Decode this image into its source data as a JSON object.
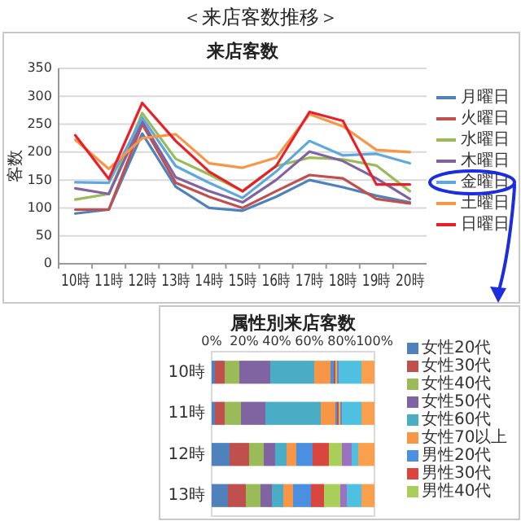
{
  "chart_data": [
    {
      "type": "line",
      "title": "来店客数",
      "ylabel": "客数",
      "annotations": [
        "＜来店客数推移＞"
      ],
      "categories": [
        "10時",
        "11時",
        "12時",
        "13時",
        "14時",
        "15時",
        "16時",
        "17時",
        "18時",
        "19時",
        "20時"
      ],
      "ylim": [
        0,
        350
      ],
      "yticks": [
        0,
        50,
        100,
        150,
        200,
        250,
        300,
        350
      ],
      "grid": "y",
      "legend": "right",
      "series": [
        {
          "name": "月曜日",
          "color": "#4f81bd",
          "values": [
            90,
            97,
            233,
            138,
            100,
            95,
            120,
            150,
            137,
            122,
            110
          ]
        },
        {
          "name": "火曜日",
          "color": "#c0504d",
          "values": [
            97,
            97,
            250,
            145,
            120,
            100,
            130,
            159,
            153,
            116,
            108
          ]
        },
        {
          "name": "水曜日",
          "color": "#9bbb59",
          "values": [
            115,
            125,
            270,
            188,
            160,
            130,
            175,
            190,
            187,
            176,
            130
          ]
        },
        {
          "name": "木曜日",
          "color": "#8064a2",
          "values": [
            135,
            125,
            255,
            155,
            130,
            110,
            150,
            201,
            184,
            153,
            116
          ]
        },
        {
          "name": "金曜日",
          "color": "#5ea8e0",
          "values": [
            146,
            145,
            262,
            175,
            145,
            118,
            165,
            220,
            194,
            197,
            180
          ]
        },
        {
          "name": "土曜日",
          "color": "#f79646",
          "values": [
            222,
            170,
            225,
            232,
            180,
            172,
            190,
            268,
            246,
            204,
            200
          ]
        },
        {
          "name": "日曜日",
          "color": "#e8202a",
          "values": [
            230,
            152,
            288,
            220,
            165,
            130,
            175,
            272,
            256,
            142,
            142
          ]
        }
      ]
    },
    {
      "type": "bar",
      "orientation": "horizontal",
      "stacked": true,
      "title": "属性別来店客数",
      "legend": "right",
      "categories": [
        "10時",
        "11時",
        "12時",
        "13時"
      ],
      "xlim": [
        0,
        100
      ],
      "xticks": [
        {
          "value": 0,
          "label": "0%"
        },
        {
          "value": 20,
          "label": "20%"
        },
        {
          "value": 40,
          "label": "40%"
        },
        {
          "value": 60,
          "label": "60%"
        },
        {
          "value": 80,
          "label": "80%"
        },
        {
          "value": 100,
          "label": "100%"
        }
      ],
      "series": [
        {
          "name": "女性20代",
          "color": "#4f81bd",
          "values": [
            2,
            2,
            11,
            10
          ]
        },
        {
          "name": "女性30代",
          "color": "#c0504d",
          "values": [
            6,
            6,
            12,
            11
          ]
        },
        {
          "name": "女性40代",
          "color": "#9bbb59",
          "values": [
            9,
            10,
            9,
            9
          ]
        },
        {
          "name": "女性50代",
          "color": "#8064a2",
          "values": [
            19,
            15,
            7,
            7
          ]
        },
        {
          "name": "女性60代",
          "color": "#4bacc6",
          "values": [
            27,
            34,
            7,
            7
          ]
        },
        {
          "name": "女性70以上",
          "color": "#f79646",
          "values": [
            10,
            9,
            6,
            6
          ]
        },
        {
          "name": "男性20代",
          "color": "#4a8fe0",
          "values": [
            2,
            1,
            10,
            11
          ]
        },
        {
          "name": "男性30代",
          "color": "#d9453f",
          "values": [
            1,
            1,
            10,
            8
          ]
        },
        {
          "name": "男性40代",
          "color": "#a9cf5a",
          "values": [
            1,
            1,
            8,
            10
          ]
        },
        {
          "color": "#9b72c0",
          "values": [
            1,
            1,
            6,
            4
          ]
        },
        {
          "color": "#4fc0e0",
          "values": [
            14,
            12,
            4,
            9
          ]
        },
        {
          "color": "#f9a04e",
          "values": [
            8,
            8,
            10,
            8
          ]
        }
      ]
    }
  ]
}
